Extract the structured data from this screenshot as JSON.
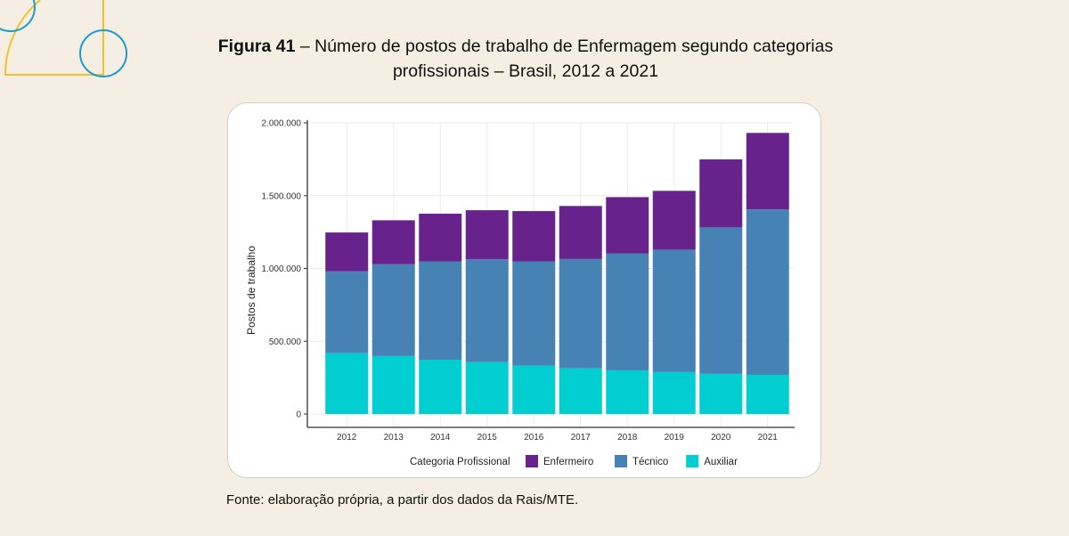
{
  "figure": {
    "label": "Figura 41",
    "title_rest": " – Número de postos de trabalho de Enfermagem segundo categorias",
    "title_line2": "profissionais – Brasil, 2012 a 2021",
    "source": "Fonte: elaboração própria, a partir dos dados da Rais/MTE."
  },
  "decoration": {
    "yellow": "#f2c12e",
    "blue": "#1e9ad0"
  },
  "chart_data": {
    "type": "bar",
    "stacked": true,
    "title": "",
    "xlabel": "",
    "ylabel": "Postos de trabalho",
    "categories": [
      "2012",
      "2013",
      "2014",
      "2015",
      "2016",
      "2017",
      "2018",
      "2019",
      "2020",
      "2021"
    ],
    "series": [
      {
        "name": "Auxiliar",
        "color": "#00ced1",
        "values": [
          418000,
          398000,
          373000,
          357000,
          333000,
          314000,
          300000,
          288000,
          276000,
          269000
        ]
      },
      {
        "name": "Técnico",
        "color": "#4682b4",
        "values": [
          562000,
          631000,
          676000,
          706000,
          716000,
          751000,
          804000,
          841000,
          1006000,
          1137000
        ]
      },
      {
        "name": "Enfermeiro",
        "color": "#68228b",
        "values": [
          267000,
          302000,
          327000,
          337000,
          345000,
          364000,
          386000,
          404000,
          467000,
          525000
        ]
      }
    ],
    "totals": [
      1247000,
      1331000,
      1376000,
      1400000,
      1394000,
      1429000,
      1490000,
      1533000,
      1749000,
      1931000
    ],
    "ylim": [
      0,
      2000000
    ],
    "yticks": [
      0,
      500000,
      1000000,
      1500000,
      2000000
    ],
    "ytick_labels": [
      "0",
      "500.000",
      "1.000.000",
      "1.500.000",
      "2.000.000"
    ],
    "grid": true,
    "legend": {
      "title": "Categoria Profissional",
      "placement": "bottom",
      "entries": [
        {
          "label": "Enfermeiro",
          "color": "#68228b"
        },
        {
          "label": "Técnico",
          "color": "#4682b4"
        },
        {
          "label": "Auxiliar",
          "color": "#00ced1"
        }
      ]
    }
  }
}
